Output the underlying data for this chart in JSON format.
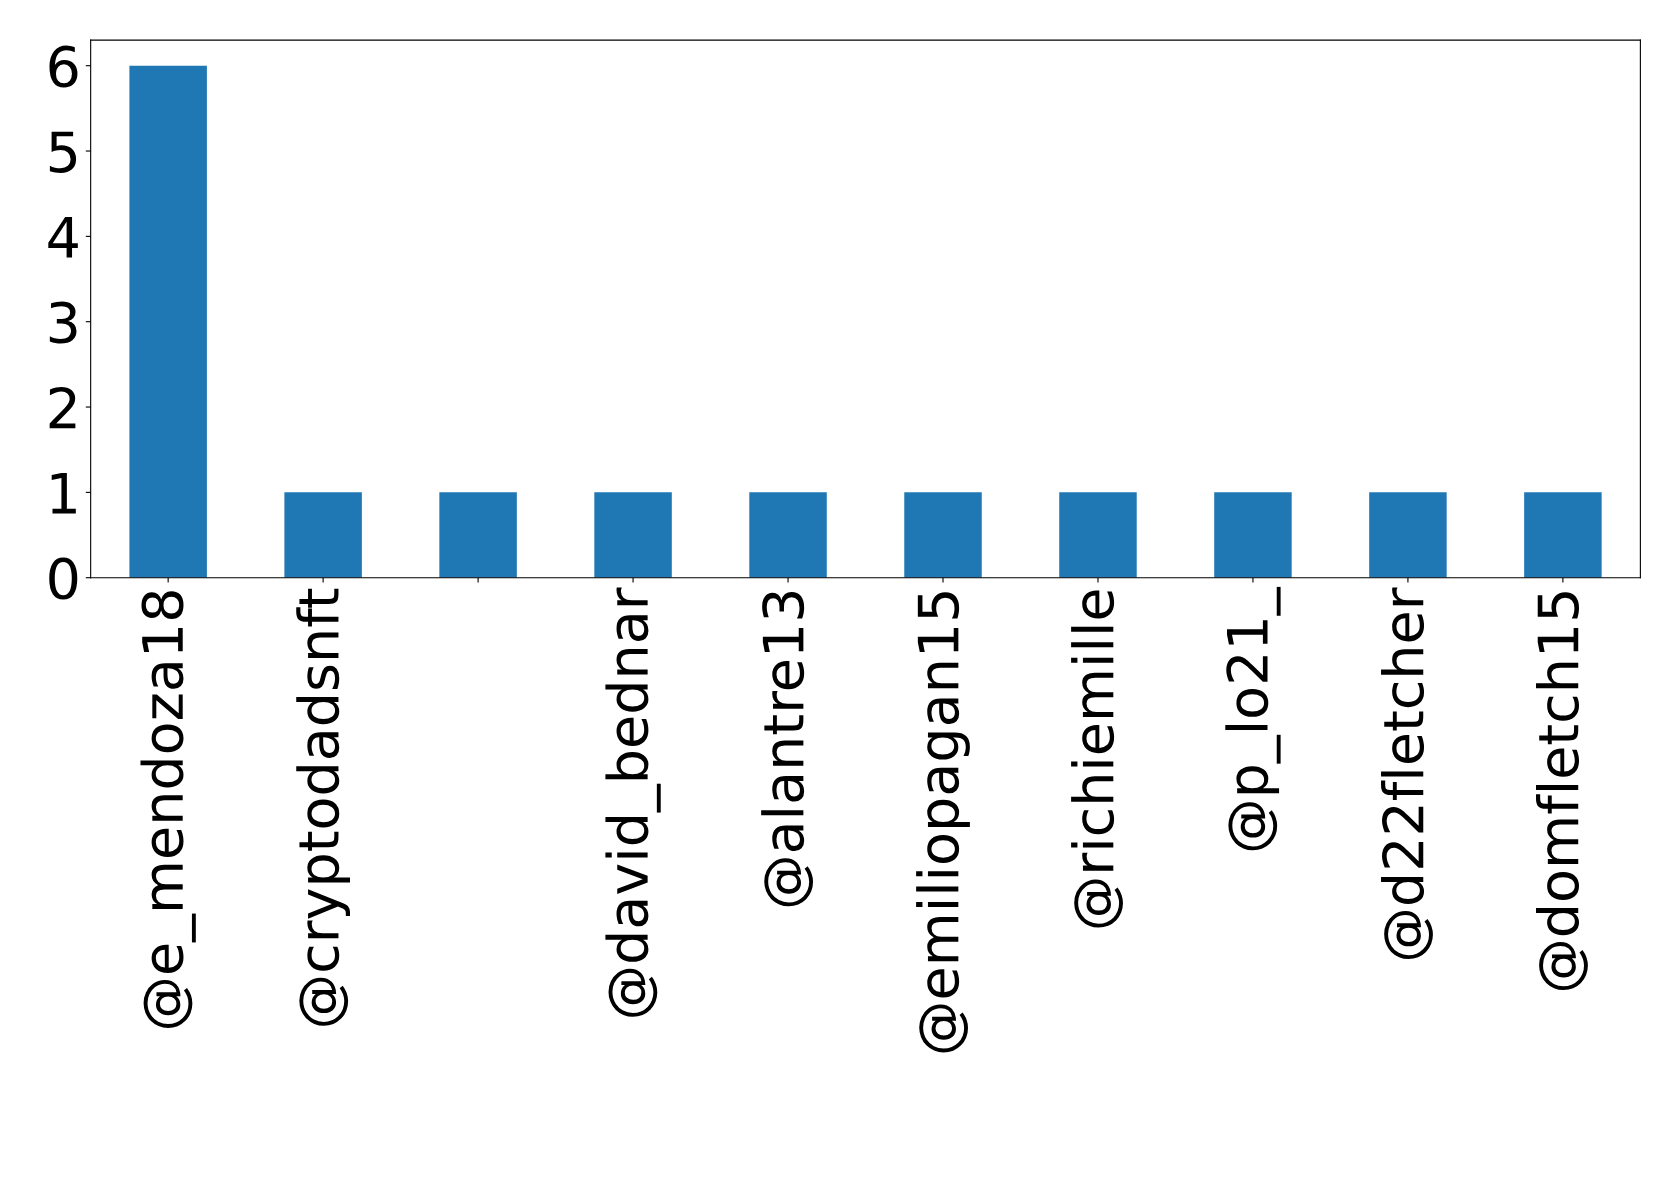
{
  "chart_data": {
    "type": "bar",
    "categories": [
      "@e_mendoza18",
      "@cryptodadsnft",
      null,
      "@david_bednar",
      "@alantre13",
      "@emiliopagan15",
      "@richiemille",
      "@p_lo21_",
      "@d22fletcher",
      "@domfletch15"
    ],
    "values": [
      6,
      1,
      1,
      1,
      1,
      1,
      1,
      1,
      1,
      1
    ],
    "color": "#1f77b4",
    "ylim": [
      0,
      6.3
    ],
    "yticks": [
      0,
      1,
      2,
      3,
      4,
      5,
      6
    ],
    "grid": false,
    "legend": false
  }
}
